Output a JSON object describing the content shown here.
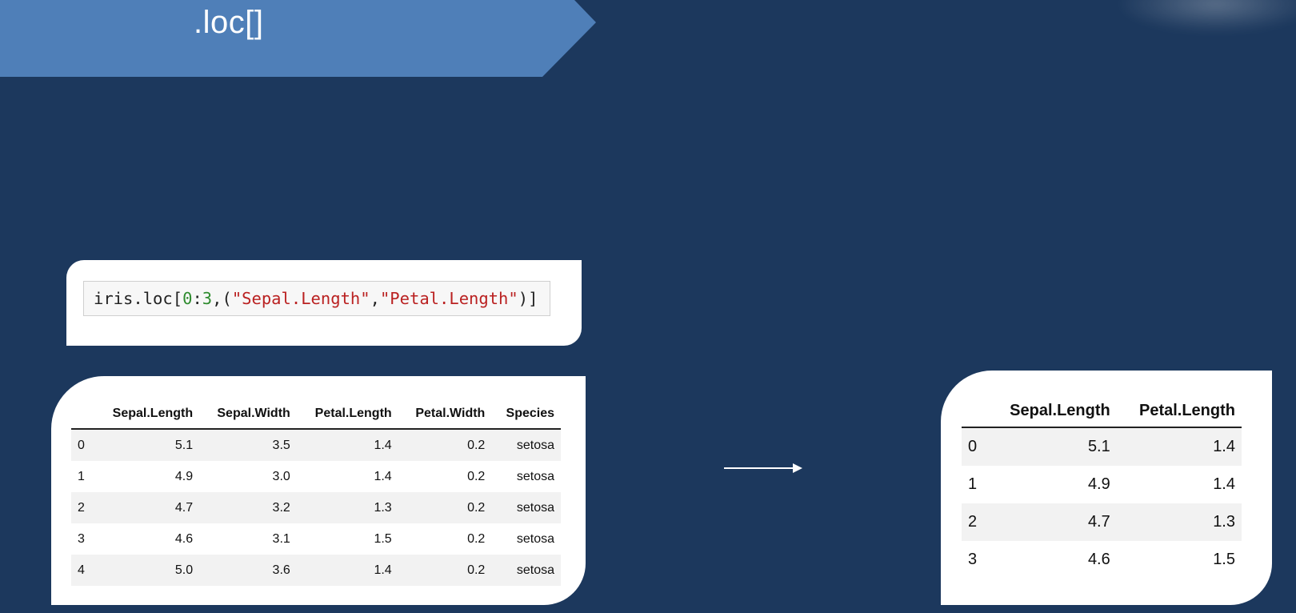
{
  "banner": {
    "title": ".loc[]",
    "color": "#4f7fb8"
  },
  "code": {
    "prefix": "iris.loc[",
    "start": "0",
    "colon": ":",
    "end": "3",
    "sep": ",(",
    "col1": "\"Sepal.Length\"",
    "comma": ",",
    "col2": "\"Petal.Length\"",
    "suffix": ")]"
  },
  "input_table": {
    "columns": [
      "",
      "Sepal.Length",
      "Sepal.Width",
      "Petal.Length",
      "Petal.Width",
      "Species"
    ],
    "rows": [
      [
        "0",
        "5.1",
        "3.5",
        "1.4",
        "0.2",
        "setosa"
      ],
      [
        "1",
        "4.9",
        "3.0",
        "1.4",
        "0.2",
        "setosa"
      ],
      [
        "2",
        "4.7",
        "3.2",
        "1.3",
        "0.2",
        "setosa"
      ],
      [
        "3",
        "4.6",
        "3.1",
        "1.5",
        "0.2",
        "setosa"
      ],
      [
        "4",
        "5.0",
        "3.6",
        "1.4",
        "0.2",
        "setosa"
      ]
    ]
  },
  "output_table": {
    "columns": [
      "",
      "Sepal.Length",
      "Petal.Length"
    ],
    "rows": [
      [
        "0",
        "5.1",
        "1.4"
      ],
      [
        "1",
        "4.9",
        "1.4"
      ],
      [
        "2",
        "4.7",
        "1.3"
      ],
      [
        "3",
        "4.6",
        "1.5"
      ]
    ]
  },
  "colors": {
    "background": "#1c385d",
    "card": "#ffffff",
    "number_token": "#2e8b2e",
    "string_token": "#ba2121"
  }
}
